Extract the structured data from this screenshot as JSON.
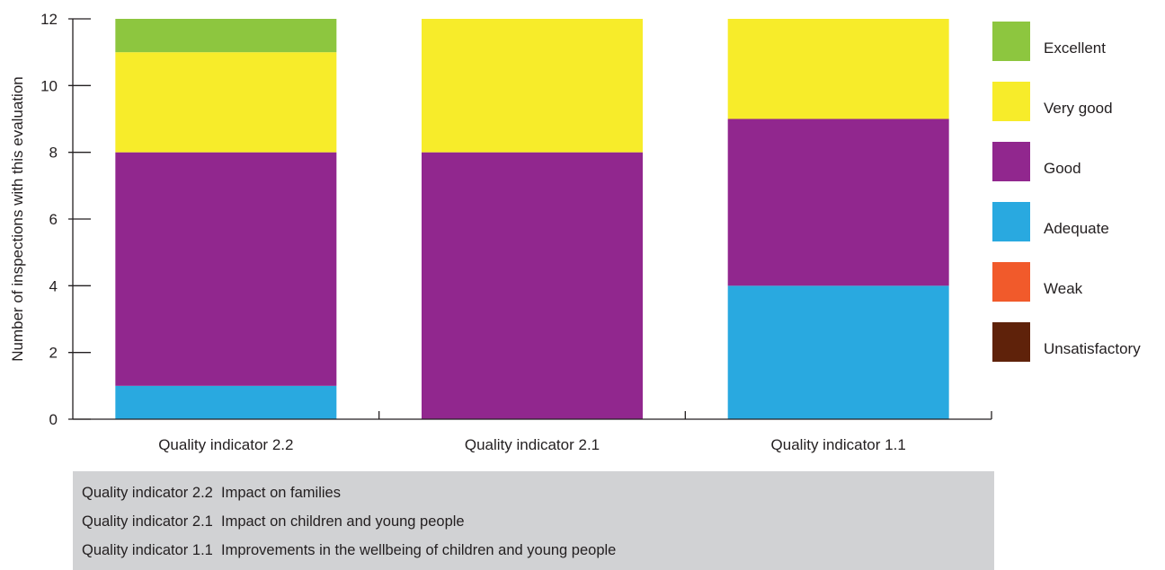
{
  "chart_data": {
    "type": "bar",
    "stacked": true,
    "ylabel": "Number of inspections with this evaluation",
    "ylim": [
      0,
      12
    ],
    "yticks": [
      0,
      2,
      4,
      6,
      8,
      10,
      12
    ],
    "categories": [
      "Quality indicator 2.2",
      "Quality indicator 2.1",
      "Quality indicator 1.1"
    ],
    "series": [
      {
        "name": "Unsatisfactory",
        "color": "#5f220a",
        "values": [
          0,
          0,
          0
        ]
      },
      {
        "name": "Weak",
        "color": "#f15a2b",
        "values": [
          0,
          0,
          0
        ]
      },
      {
        "name": "Adequate",
        "color": "#29a9e0",
        "values": [
          1,
          0,
          4
        ]
      },
      {
        "name": "Good",
        "color": "#91278e",
        "values": [
          7,
          8,
          5
        ]
      },
      {
        "name": "Very good",
        "color": "#f7ec2a",
        "values": [
          3,
          4,
          3
        ]
      },
      {
        "name": "Excellent",
        "color": "#8dc63f",
        "values": [
          1,
          0,
          0
        ]
      }
    ],
    "legend_position": "right",
    "grid": false
  },
  "key": {
    "lines": [
      "Quality indicator 2.2  Impact on families",
      "Quality indicator 2.1  Impact on children and young people",
      "Quality indicator 1.1  Improvements in the wellbeing of children and young people"
    ]
  }
}
